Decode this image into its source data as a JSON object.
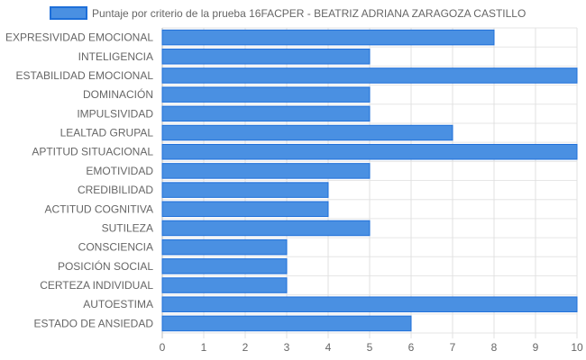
{
  "chart_data": {
    "type": "bar",
    "orientation": "horizontal",
    "categories": [
      "EXPRESIVIDAD EMOCIONAL",
      "INTELIGENCIA",
      "ESTABILIDAD EMOCIONAL",
      "DOMINACIÓN",
      "IMPULSIVIDAD",
      "LEALTAD GRUPAL",
      "APTITUD SITUACIONAL",
      "EMOTIVIDAD",
      "CREDIBILIDAD",
      "ACTITUD COGNITIVA",
      "SUTILEZA",
      "CONSCIENCIA",
      "POSICIÓN SOCIAL",
      "CERTEZA INDIVIDUAL",
      "AUTOESTIMA",
      "ESTADO DE ANSIEDAD"
    ],
    "series": [
      {
        "name": "Puntaje por criterio de la prueba 16FACPER - BEATRIZ ADRIANA ZARAGOZA CASTILLO",
        "values": [
          8,
          5,
          10,
          5,
          5,
          7,
          10,
          5,
          4,
          4,
          5,
          3,
          3,
          3,
          10,
          6
        ],
        "color": "#4a90e2",
        "border_color": "#1e6fd9"
      }
    ],
    "xlim": [
      0,
      10
    ],
    "x_ticks": [
      "0",
      "1",
      "2",
      "3",
      "4",
      "5",
      "6",
      "7",
      "8",
      "9",
      "10"
    ],
    "grid": true,
    "legend_position": "top-center"
  }
}
